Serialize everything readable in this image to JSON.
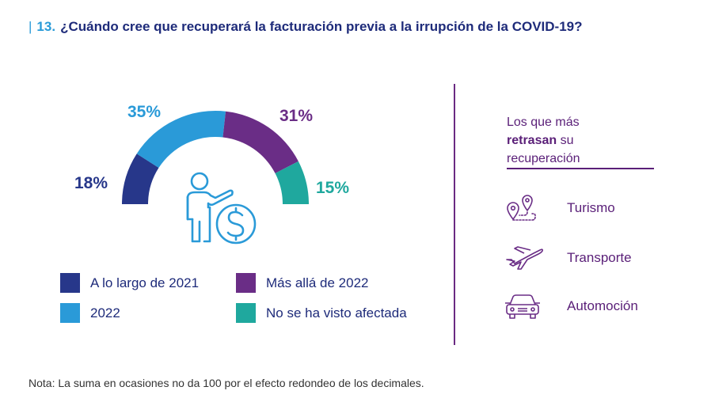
{
  "header": {
    "number": "13.",
    "title": "¿Cuándo cree que recuperará la facturación previa a la irrupción de la COVID-19?"
  },
  "chart_data": {
    "type": "pie",
    "subtype": "half-donut",
    "categories": [
      "A lo largo de 2021",
      "2022",
      "Más allá de 2022",
      "No se ha visto afectada"
    ],
    "values": [
      18,
      35,
      31,
      15
    ],
    "value_labels": [
      "18%",
      "35%",
      "31%",
      "15%"
    ],
    "colors": [
      "#27378a",
      "#2a9ad8",
      "#6a2d86",
      "#1fa89e"
    ],
    "legend_position": "bottom"
  },
  "side": {
    "title_line1": "Los que más",
    "title_bold": "retrasan",
    "title_rest": " su",
    "title_line3": "recuperación",
    "sectors": [
      "Turismo",
      "Transporte",
      "Automoción"
    ],
    "icons": [
      "map-route-icon",
      "airplane-icon",
      "car-icon"
    ]
  },
  "note": "Nota: La suma en ocasiones no da 100 por el efecto redondeo de los decimales.",
  "colors": {
    "navy": "#1e2b7a",
    "accent_blue": "#2a9bd8",
    "purple": "#5a1f78"
  }
}
